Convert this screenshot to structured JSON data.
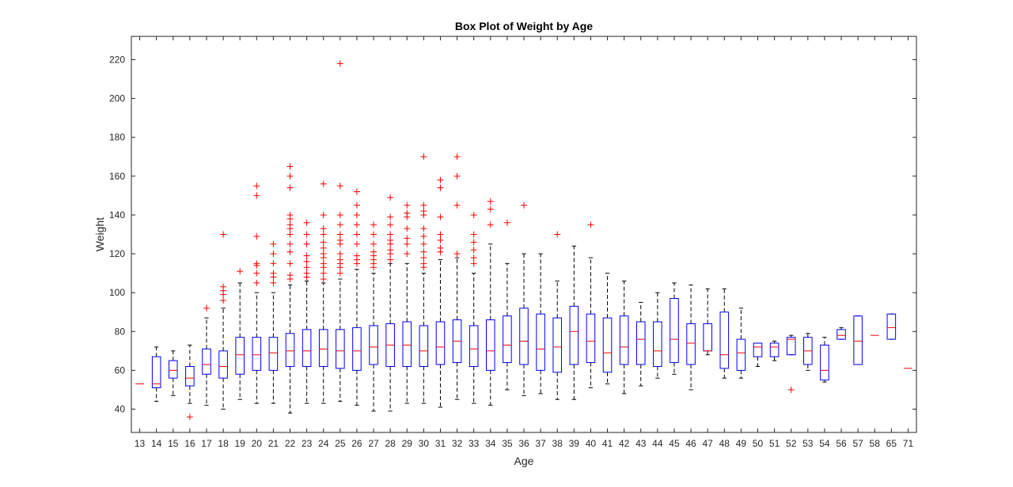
{
  "chart_data": {
    "type": "box",
    "title": "Box Plot of Weight by Age",
    "xlabel": "Age",
    "ylabel": "Weight",
    "ylim": [
      28,
      232
    ],
    "yticks": [
      40,
      60,
      80,
      100,
      120,
      140,
      160,
      180,
      200,
      220
    ],
    "grid": false,
    "colors": {
      "box": "#0000ff",
      "median": "#ff0000",
      "whisker": "#000000",
      "outlier": "#ff0000"
    },
    "categories": [
      "13",
      "14",
      "15",
      "16",
      "17",
      "18",
      "19",
      "20",
      "21",
      "22",
      "23",
      "24",
      "25",
      "26",
      "27",
      "28",
      "29",
      "30",
      "31",
      "32",
      "33",
      "34",
      "35",
      "36",
      "37",
      "38",
      "39",
      "40",
      "41",
      "42",
      "43",
      "44",
      "45",
      "46",
      "47",
      "48",
      "49",
      "50",
      "51",
      "52",
      "53",
      "54",
      "56",
      "57",
      "58",
      "65",
      "71"
    ],
    "boxes": [
      {
        "min": 53,
        "q1": 53,
        "median": 53,
        "q3": 53,
        "max": 53,
        "outliers": []
      },
      {
        "min": 44,
        "q1": 51,
        "median": 53,
        "q3": 67,
        "max": 72,
        "outliers": []
      },
      {
        "min": 47,
        "q1": 56,
        "median": 60,
        "q3": 65,
        "max": 70,
        "outliers": []
      },
      {
        "min": 43,
        "q1": 52,
        "median": 56,
        "q3": 62,
        "max": 73,
        "outliers": [
          36
        ]
      },
      {
        "min": 42,
        "q1": 58,
        "median": 63,
        "q3": 71,
        "max": 87,
        "outliers": [
          92
        ]
      },
      {
        "min": 40,
        "q1": 56,
        "median": 62,
        "q3": 70,
        "max": 92,
        "outliers": [
          96,
          99,
          101,
          103,
          130
        ]
      },
      {
        "min": 45,
        "q1": 58,
        "median": 68,
        "q3": 77,
        "max": 105,
        "outliers": [
          111
        ]
      },
      {
        "min": 43,
        "q1": 60,
        "median": 68,
        "q3": 77,
        "max": 100,
        "outliers": [
          105,
          110,
          114,
          115,
          129,
          150,
          155
        ]
      },
      {
        "min": 43,
        "q1": 60,
        "median": 69,
        "q3": 77,
        "max": 100,
        "outliers": [
          105,
          108,
          110,
          115,
          120,
          125
        ]
      },
      {
        "min": 38,
        "q1": 62,
        "median": 70,
        "q3": 79,
        "max": 104,
        "outliers": [
          107,
          109,
          115,
          121,
          125,
          130,
          133,
          135,
          138,
          140,
          154,
          160,
          165
        ]
      },
      {
        "min": 43,
        "q1": 62,
        "median": 70,
        "q3": 81,
        "max": 106,
        "outliers": [
          108,
          110,
          113,
          116,
          119,
          125,
          130,
          136
        ]
      },
      {
        "min": 43,
        "q1": 62,
        "median": 71,
        "q3": 81,
        "max": 105,
        "outliers": [
          107,
          110,
          113,
          115,
          118,
          120,
          123,
          126,
          130,
          133,
          140,
          156
        ]
      },
      {
        "min": 44,
        "q1": 61,
        "median": 70,
        "q3": 81,
        "max": 107,
        "outliers": [
          110,
          113,
          115,
          117,
          120,
          125,
          127,
          130,
          135,
          140,
          155,
          218
        ]
      },
      {
        "min": 42,
        "q1": 60,
        "median": 70,
        "q3": 82,
        "max": 112,
        "outliers": [
          115,
          117,
          119,
          125,
          130,
          135,
          140,
          145,
          152
        ]
      },
      {
        "min": 39,
        "q1": 63,
        "median": 72,
        "q3": 83,
        "max": 110,
        "outliers": [
          113,
          115,
          117,
          119,
          121,
          125,
          130,
          135
        ]
      },
      {
        "min": 39,
        "q1": 62,
        "median": 73,
        "q3": 84,
        "max": 115,
        "outliers": [
          117,
          120,
          122,
          125,
          127,
          130,
          135,
          139,
          149
        ]
      },
      {
        "min": 43,
        "q1": 62,
        "median": 73,
        "q3": 85,
        "max": 115,
        "outliers": [
          120,
          125,
          128,
          133,
          139,
          141,
          145
        ]
      },
      {
        "min": 43,
        "q1": 62,
        "median": 70,
        "q3": 83,
        "max": 110,
        "outliers": [
          113,
          115,
          118,
          121,
          125,
          129,
          133,
          140,
          142,
          145,
          170
        ]
      },
      {
        "min": 41,
        "q1": 63,
        "median": 72,
        "q3": 85,
        "max": 117,
        "outliers": [
          121,
          123,
          127,
          130,
          139,
          154,
          158
        ]
      },
      {
        "min": 45,
        "q1": 64,
        "median": 75,
        "q3": 86,
        "max": 118,
        "outliers": [
          120,
          145,
          160,
          170
        ]
      },
      {
        "min": 43,
        "q1": 62,
        "median": 71,
        "q3": 83,
        "max": 110,
        "outliers": [
          115,
          118,
          122,
          126,
          130,
          140
        ]
      },
      {
        "min": 42,
        "q1": 60,
        "median": 70,
        "q3": 86,
        "max": 125,
        "outliers": [
          135,
          143,
          147
        ]
      },
      {
        "min": 50,
        "q1": 64,
        "median": 73,
        "q3": 88,
        "max": 115,
        "outliers": [
          136
        ]
      },
      {
        "min": 47,
        "q1": 63,
        "median": 75,
        "q3": 92,
        "max": 120,
        "outliers": [
          145
        ]
      },
      {
        "min": 48,
        "q1": 60,
        "median": 71,
        "q3": 89,
        "max": 120,
        "outliers": []
      },
      {
        "min": 45,
        "q1": 59,
        "median": 72,
        "q3": 87,
        "max": 106,
        "outliers": [
          130
        ]
      },
      {
        "min": 45,
        "q1": 63,
        "median": 80,
        "q3": 93,
        "max": 124,
        "outliers": []
      },
      {
        "min": 51,
        "q1": 64,
        "median": 75,
        "q3": 89,
        "max": 118,
        "outliers": [
          135
        ]
      },
      {
        "min": 53,
        "q1": 59,
        "median": 69,
        "q3": 87,
        "max": 110,
        "outliers": []
      },
      {
        "min": 48,
        "q1": 63,
        "median": 72,
        "q3": 88,
        "max": 106,
        "outliers": []
      },
      {
        "min": 52,
        "q1": 63,
        "median": 76,
        "q3": 85,
        "max": 95,
        "outliers": []
      },
      {
        "min": 56,
        "q1": 62,
        "median": 70,
        "q3": 85,
        "max": 100,
        "outliers": []
      },
      {
        "min": 58,
        "q1": 64,
        "median": 76,
        "q3": 97,
        "max": 105,
        "outliers": []
      },
      {
        "min": 50,
        "q1": 63,
        "median": 74,
        "q3": 84,
        "max": 104,
        "outliers": []
      },
      {
        "min": 68,
        "q1": 70,
        "median": 70,
        "q3": 84,
        "max": 102,
        "outliers": []
      },
      {
        "min": 56,
        "q1": 61,
        "median": 68,
        "q3": 90,
        "max": 102,
        "outliers": []
      },
      {
        "min": 56,
        "q1": 60,
        "median": 69,
        "q3": 76,
        "max": 92,
        "outliers": []
      },
      {
        "min": 62,
        "q1": 67,
        "median": 72,
        "q3": 74,
        "max": 74,
        "outliers": []
      },
      {
        "min": 65,
        "q1": 67,
        "median": 72,
        "q3": 74,
        "max": 75,
        "outliers": []
      },
      {
        "min": 68,
        "q1": 68,
        "median": 76,
        "q3": 77,
        "max": 78,
        "outliers": [
          50
        ]
      },
      {
        "min": 60,
        "q1": 63,
        "median": 70,
        "q3": 77,
        "max": 79,
        "outliers": []
      },
      {
        "min": 54,
        "q1": 55,
        "median": 60,
        "q3": 73,
        "max": 77,
        "outliers": []
      },
      {
        "min": 76,
        "q1": 76,
        "median": 78,
        "q3": 81,
        "max": 82,
        "outliers": []
      },
      {
        "min": 63,
        "q1": 63,
        "median": 75,
        "q3": 88,
        "max": 88,
        "outliers": []
      },
      {
        "min": 78,
        "q1": 78,
        "median": 78,
        "q3": 78,
        "max": 78,
        "outliers": []
      },
      {
        "min": 76,
        "q1": 76,
        "median": 82,
        "q3": 89,
        "max": 89,
        "outliers": []
      },
      {
        "min": 61,
        "q1": 61,
        "median": 61,
        "q3": 61,
        "max": 61,
        "outliers": []
      }
    ]
  }
}
